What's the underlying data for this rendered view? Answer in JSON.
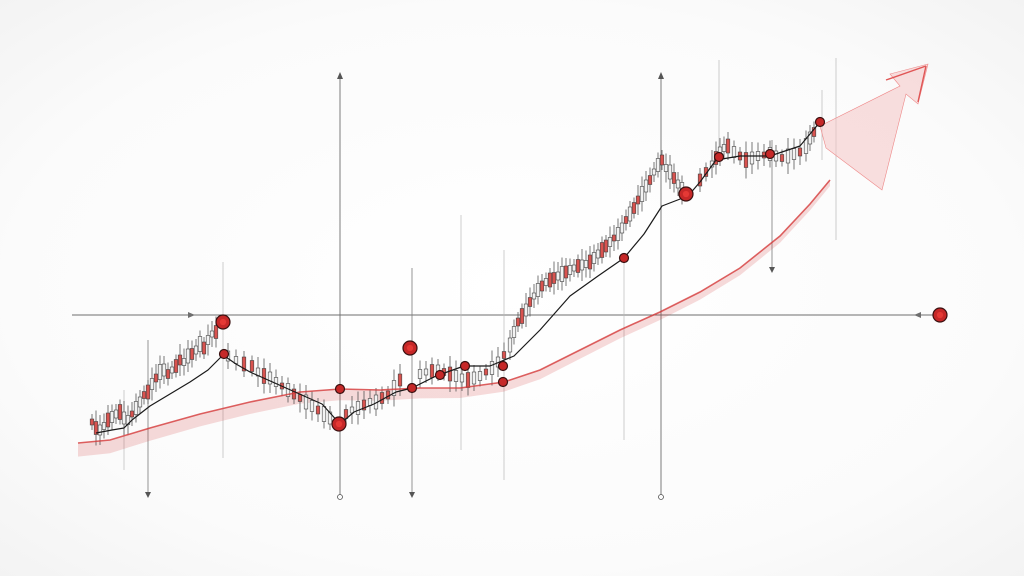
{
  "chart_data": {
    "type": "candlestick",
    "title": "",
    "xlabel": "",
    "ylabel": "",
    "grid": false,
    "legend": "none",
    "colors": {
      "up_candle": "#f3f3f3",
      "down_candle": "#d9534f",
      "wick": "#555555",
      "price_line": "#1a1a1a",
      "trend_line": "#d43a3a",
      "marker": "#c62828",
      "arrow": "#e57373"
    },
    "candles": [
      [
        92,
        422
      ],
      [
        96,
        428
      ],
      [
        100,
        430
      ],
      [
        104,
        426
      ],
      [
        108,
        420
      ],
      [
        112,
        417
      ],
      [
        116,
        414
      ],
      [
        120,
        412
      ],
      [
        124,
        418
      ],
      [
        128,
        420
      ],
      [
        132,
        414
      ],
      [
        136,
        408
      ],
      [
        140,
        402
      ],
      [
        144,
        395
      ],
      [
        148,
        392
      ],
      [
        152,
        384
      ],
      [
        156,
        378
      ],
      [
        160,
        372
      ],
      [
        164,
        370
      ],
      [
        168,
        374
      ],
      [
        172,
        370
      ],
      [
        176,
        366
      ],
      [
        180,
        360
      ],
      [
        184,
        362
      ],
      [
        188,
        356
      ],
      [
        192,
        354
      ],
      [
        196,
        350
      ],
      [
        200,
        344
      ],
      [
        204,
        348
      ],
      [
        208,
        340
      ],
      [
        212,
        334
      ],
      [
        216,
        332
      ],
      [
        228,
        356
      ],
      [
        236,
        360
      ],
      [
        244,
        364
      ],
      [
        252,
        366
      ],
      [
        258,
        372
      ],
      [
        264,
        376
      ],
      [
        270,
        378
      ],
      [
        276,
        382
      ],
      [
        282,
        386
      ],
      [
        288,
        390
      ],
      [
        294,
        394
      ],
      [
        300,
        398
      ],
      [
        306,
        402
      ],
      [
        312,
        406
      ],
      [
        318,
        410
      ],
      [
        324,
        414
      ],
      [
        330,
        418
      ],
      [
        346,
        414
      ],
      [
        352,
        410
      ],
      [
        358,
        408
      ],
      [
        364,
        405
      ],
      [
        370,
        402
      ],
      [
        376,
        402
      ],
      [
        382,
        398
      ],
      [
        388,
        395
      ],
      [
        394,
        388
      ],
      [
        400,
        380
      ],
      [
        420,
        374
      ],
      [
        426,
        372
      ],
      [
        432,
        371
      ],
      [
        438,
        370
      ],
      [
        444,
        372
      ],
      [
        450,
        374
      ],
      [
        456,
        376
      ],
      [
        462,
        378
      ],
      [
        468,
        380
      ],
      [
        474,
        378
      ],
      [
        480,
        376
      ],
      [
        486,
        372
      ],
      [
        492,
        368
      ],
      [
        498,
        362
      ],
      [
        504,
        355
      ],
      [
        510,
        345
      ],
      [
        514,
        332
      ],
      [
        518,
        322
      ],
      [
        522,
        316
      ],
      [
        526,
        310
      ],
      [
        530,
        302
      ],
      [
        534,
        296
      ],
      [
        538,
        290
      ],
      [
        542,
        286
      ],
      [
        546,
        282
      ],
      [
        550,
        280
      ],
      [
        554,
        278
      ],
      [
        558,
        276
      ],
      [
        562,
        274
      ],
      [
        566,
        272
      ],
      [
        570,
        270
      ],
      [
        574,
        268
      ],
      [
        578,
        266
      ],
      [
        582,
        265
      ],
      [
        586,
        264
      ],
      [
        590,
        262
      ],
      [
        594,
        258
      ],
      [
        598,
        254
      ],
      [
        602,
        250
      ],
      [
        606,
        246
      ],
      [
        610,
        242
      ],
      [
        614,
        238
      ],
      [
        618,
        234
      ],
      [
        622,
        228
      ],
      [
        626,
        220
      ],
      [
        630,
        214
      ],
      [
        634,
        208
      ],
      [
        638,
        200
      ],
      [
        642,
        194
      ],
      [
        646,
        186
      ],
      [
        650,
        180
      ],
      [
        654,
        172
      ],
      [
        658,
        165
      ],
      [
        662,
        160
      ],
      [
        666,
        168
      ],
      [
        670,
        172
      ],
      [
        674,
        178
      ],
      [
        678,
        184
      ],
      [
        682,
        190
      ],
      [
        700,
        180
      ],
      [
        706,
        172
      ],
      [
        712,
        164
      ],
      [
        716,
        158
      ],
      [
        720,
        152
      ],
      [
        724,
        148
      ],
      [
        728,
        146
      ],
      [
        734,
        152
      ],
      [
        740,
        156
      ],
      [
        746,
        160
      ],
      [
        752,
        158
      ],
      [
        758,
        156
      ],
      [
        764,
        155
      ],
      [
        770,
        154
      ],
      [
        776,
        156
      ],
      [
        782,
        158
      ],
      [
        788,
        156
      ],
      [
        794,
        154
      ],
      [
        800,
        152
      ],
      [
        806,
        146
      ],
      [
        810,
        138
      ],
      [
        814,
        132
      ]
    ],
    "price_line": [
      [
        96,
        433
      ],
      [
        112,
        430
      ],
      [
        124,
        428
      ],
      [
        132,
        420
      ],
      [
        150,
        406
      ],
      [
        170,
        394
      ],
      [
        190,
        382
      ],
      [
        208,
        370
      ],
      [
        223,
        355
      ],
      [
        236,
        364
      ],
      [
        250,
        372
      ],
      [
        268,
        380
      ],
      [
        286,
        388
      ],
      [
        304,
        396
      ],
      [
        322,
        404
      ],
      [
        340,
        424
      ],
      [
        354,
        412
      ],
      [
        374,
        404
      ],
      [
        396,
        392
      ],
      [
        412,
        388
      ],
      [
        436,
        376
      ],
      [
        464,
        366
      ],
      [
        490,
        366
      ],
      [
        514,
        356
      ],
      [
        540,
        330
      ],
      [
        570,
        296
      ],
      [
        598,
        276
      ],
      [
        624,
        258
      ],
      [
        644,
        234
      ],
      [
        662,
        206
      ],
      [
        688,
        196
      ],
      [
        700,
        182
      ],
      [
        716,
        160
      ],
      [
        740,
        156
      ],
      [
        770,
        156
      ],
      [
        800,
        146
      ],
      [
        820,
        122
      ]
    ],
    "trend_line": [
      [
        78,
        443
      ],
      [
        110,
        440
      ],
      [
        150,
        428
      ],
      [
        200,
        414
      ],
      [
        250,
        402
      ],
      [
        300,
        392
      ],
      [
        340,
        389
      ],
      [
        380,
        390
      ],
      [
        420,
        388
      ],
      [
        460,
        388
      ],
      [
        504,
        382
      ],
      [
        540,
        370
      ],
      [
        580,
        350
      ],
      [
        620,
        330
      ],
      [
        660,
        312
      ],
      [
        700,
        292
      ],
      [
        740,
        268
      ],
      [
        780,
        236
      ],
      [
        810,
        204
      ],
      [
        830,
        180
      ]
    ],
    "markers": [
      [
        223,
        322
      ],
      [
        224,
        354
      ],
      [
        340,
        389
      ],
      [
        339,
        424
      ],
      [
        410,
        348
      ],
      [
        412,
        388
      ],
      [
        440,
        375
      ],
      [
        465,
        366
      ],
      [
        503,
        366
      ],
      [
        503,
        382
      ],
      [
        624,
        258
      ],
      [
        686,
        194
      ],
      [
        719,
        157
      ],
      [
        770,
        154
      ],
      [
        820,
        122
      ],
      [
        940,
        315
      ]
    ]
  },
  "annotations": {
    "left_arrow_icon": "arrow-right-icon",
    "right_arrow_icon": "arrow-left-icon",
    "up_arrow_icon": "arrow-up-icon",
    "down_arrow_icon": "arrow-down-icon"
  }
}
